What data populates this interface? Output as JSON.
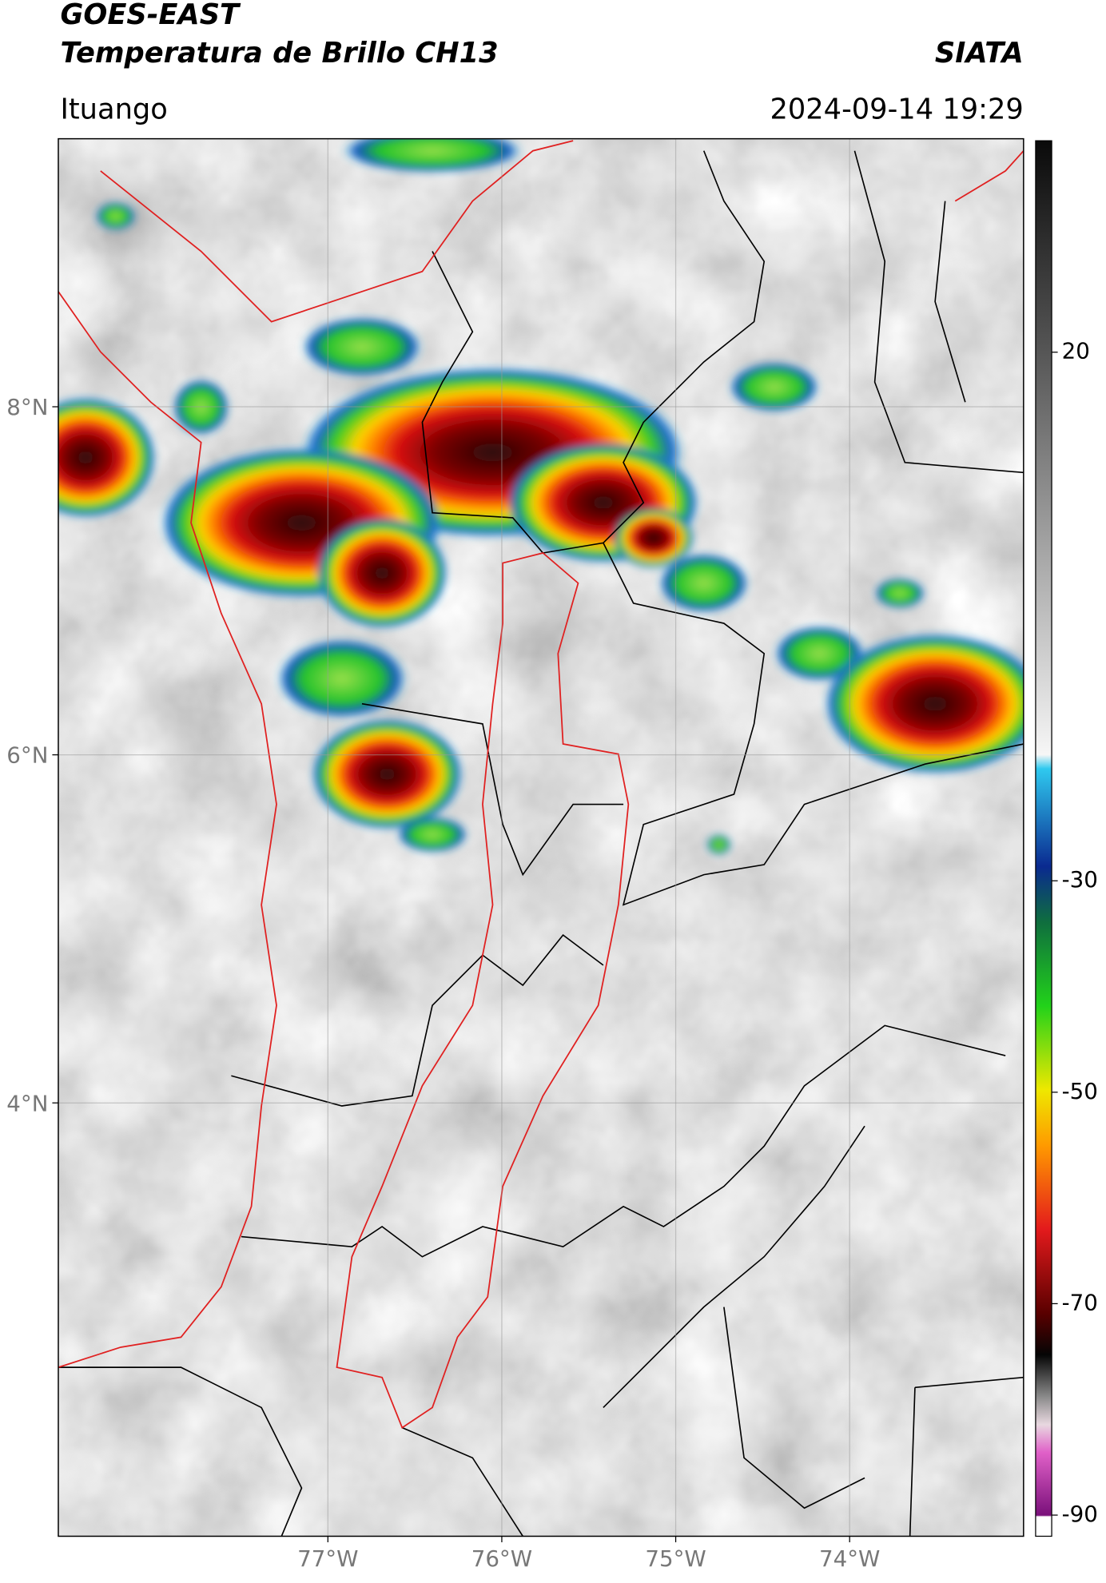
{
  "header": {
    "title": "GOES-EAST",
    "subtitle": "Temperatura de Brillo CH13",
    "source": "SIATA",
    "location": "Ituango",
    "timestamp": "2024-09-14 19:29"
  },
  "map": {
    "type": "map",
    "xlim": [
      -78.55,
      -73.0
    ],
    "ylim": [
      1.51,
      9.54
    ],
    "xticks": [
      {
        "value": -77,
        "label": "77°W"
      },
      {
        "value": -76,
        "label": "76°W"
      },
      {
        "value": -75,
        "label": "75°W"
      },
      {
        "value": -74,
        "label": "74°W"
      }
    ],
    "yticks": [
      {
        "value": 8,
        "label": "8°N"
      },
      {
        "value": 6,
        "label": "6°N"
      },
      {
        "value": 4,
        "label": "4°N"
      }
    ],
    "grid": true
  },
  "colorbar": {
    "lim": [
      -92,
      40
    ],
    "ticks": [
      20,
      -30,
      -50,
      -70,
      -90
    ]
  }
}
